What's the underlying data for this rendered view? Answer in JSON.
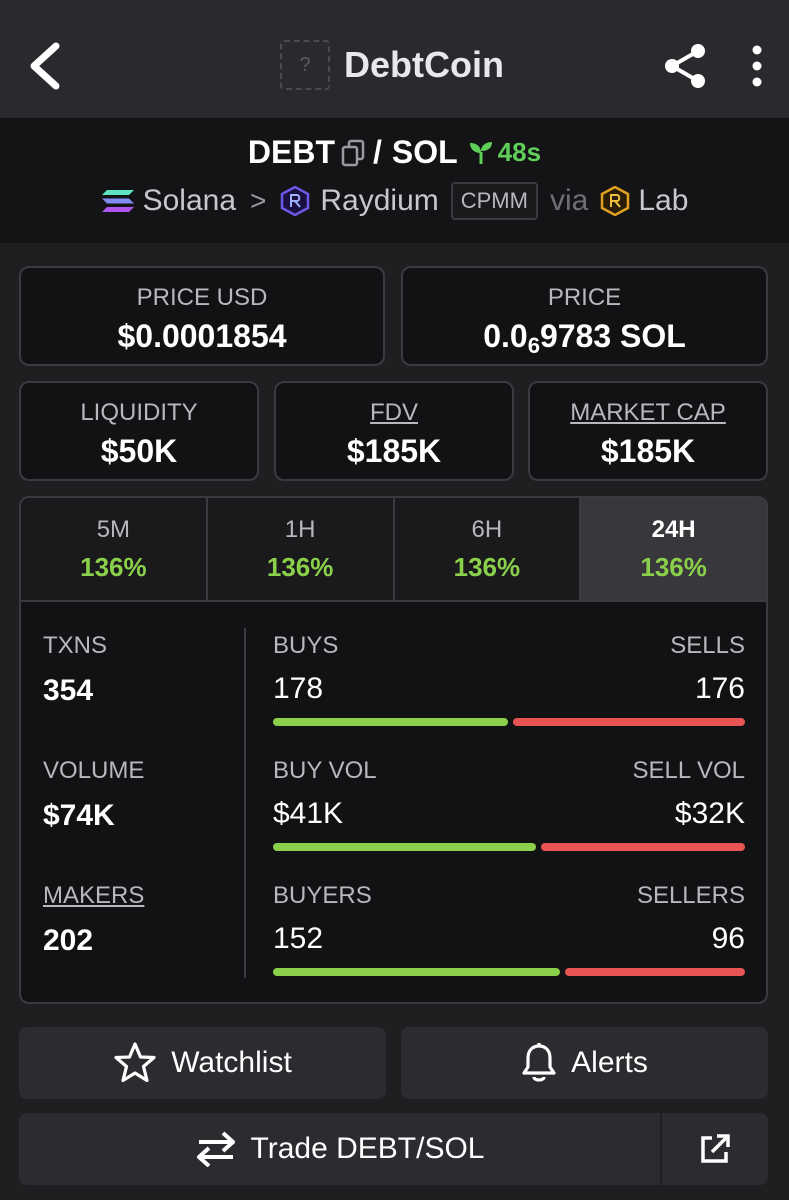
{
  "header": {
    "title": "DebtCoin",
    "token_placeholder": "?"
  },
  "pair": {
    "base": "DEBT",
    "slash": "/",
    "quote": "SOL",
    "age": "48s",
    "chain": "Solana",
    "chevron": ">",
    "dex": "Raydium",
    "pool_type": "CPMM",
    "via": "via",
    "launchpad": "Lab"
  },
  "price_cards": [
    {
      "label": "PRICE USD",
      "value": "$0.0001854"
    },
    {
      "label": "PRICE",
      "value_prefix": "0.0",
      "value_sub": "6",
      "value_suffix": "9783 SOL"
    }
  ],
  "metric_cards": [
    {
      "label": "LIQUIDITY",
      "value": "$50K"
    },
    {
      "label": "FDV",
      "value": "$185K"
    },
    {
      "label": "MARKET CAP",
      "value": "$185K"
    }
  ],
  "timeframes": [
    {
      "label": "5M",
      "change": "136%"
    },
    {
      "label": "1H",
      "change": "136%"
    },
    {
      "label": "6H",
      "change": "136%"
    },
    {
      "label": "24H",
      "change": "136%",
      "active": true
    }
  ],
  "stats": [
    {
      "label": "TXNS",
      "value": "354"
    },
    {
      "label": "VOLUME",
      "value": "$74K"
    },
    {
      "label": "MAKERS",
      "value": "202"
    }
  ],
  "splits": [
    {
      "left_label": "BUYS",
      "right_label": "SELLS",
      "left_value": "178",
      "right_value": "176",
      "buy_fraction": 0.503
    },
    {
      "left_label": "BUY VOL",
      "right_label": "SELL VOL",
      "left_value": "$41K",
      "right_value": "$32K",
      "buy_fraction": 0.562
    },
    {
      "left_label": "BUYERS",
      "right_label": "SELLERS",
      "left_value": "152",
      "right_value": "96",
      "buy_fraction": 0.613
    }
  ],
  "actions": {
    "watchlist": "Watchlist",
    "alerts": "Alerts",
    "trade": "Trade DEBT/SOL"
  },
  "colors": {
    "positive": "#8bd04a",
    "negative": "#e85454",
    "age": "#5fcf5a"
  }
}
